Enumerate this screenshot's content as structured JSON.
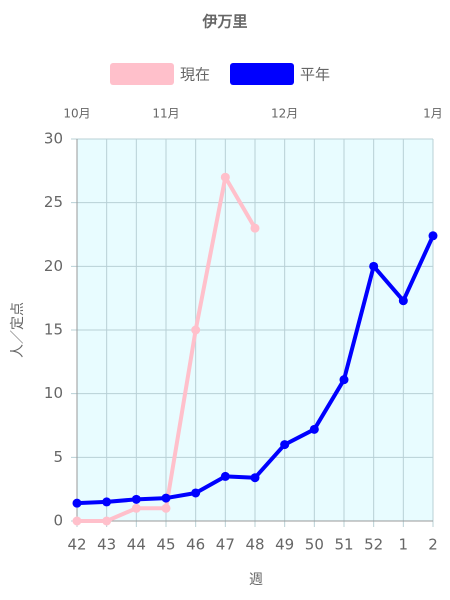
{
  "chart_data": {
    "type": "line",
    "title": "伊万里",
    "x_label": "週",
    "y_label": "人／定点",
    "categories": [
      "42",
      "43",
      "44",
      "45",
      "46",
      "47",
      "48",
      "49",
      "50",
      "51",
      "52",
      "1",
      "2"
    ],
    "month_ticks": [
      {
        "label": "10月",
        "category": "42"
      },
      {
        "label": "11月",
        "category": "45"
      },
      {
        "label": "12月",
        "category": "49"
      },
      {
        "label": "1月",
        "category": "2"
      }
    ],
    "series": [
      {
        "name": "現在",
        "color": "#ffc0cb",
        "values": [
          0,
          0,
          1,
          1,
          15,
          27,
          23,
          null,
          null,
          null,
          null,
          null,
          null
        ]
      },
      {
        "name": "平年",
        "color": "#0000ff",
        "values": [
          1.4,
          1.5,
          1.7,
          1.8,
          2.2,
          3.5,
          3.4,
          6.0,
          7.2,
          11.1,
          20.0,
          17.3,
          22.4
        ]
      }
    ],
    "ylim": [
      0,
      30
    ],
    "yticks": [
      0,
      5,
      10,
      15,
      20,
      25,
      30
    ],
    "grid": true,
    "legend": "top"
  }
}
